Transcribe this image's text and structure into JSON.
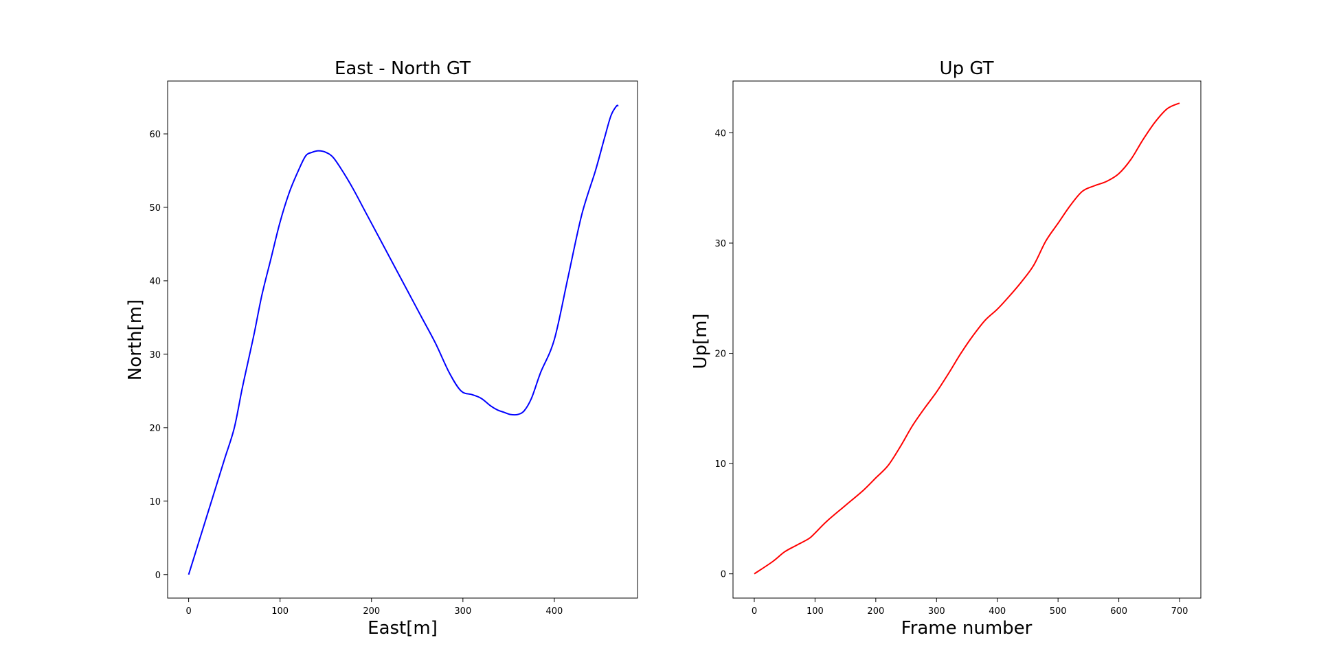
{
  "chart_data": [
    {
      "type": "line",
      "title": "East - North GT",
      "xlabel": "East[m]",
      "ylabel": "North[m]",
      "xlim": [
        -23,
        491
      ],
      "ylim": [
        -3.2,
        67.2
      ],
      "xticks": [
        0,
        100,
        200,
        300,
        400
      ],
      "yticks": [
        0,
        10,
        20,
        30,
        40,
        50,
        60
      ],
      "grid": false,
      "series": [
        {
          "color": "#0000ff",
          "x": [
            0,
            10,
            20,
            30,
            40,
            50,
            58,
            65,
            72,
            80,
            90,
            100,
            110,
            120,
            128,
            135,
            142,
            150,
            158,
            168,
            180,
            195,
            210,
            225,
            240,
            255,
            270,
            285,
            298,
            310,
            320,
            330,
            338,
            345,
            352,
            360,
            367,
            375,
            385,
            400,
            415,
            430,
            445,
            455,
            462,
            468,
            470
          ],
          "y": [
            0,
            4,
            8,
            12,
            16,
            20,
            25,
            29,
            33,
            38,
            43,
            48,
            52,
            55,
            57,
            57.5,
            57.7,
            57.5,
            56.8,
            55,
            52.5,
            49,
            45.5,
            42,
            38.5,
            35,
            31.5,
            27.5,
            25,
            24.5,
            24,
            23,
            22.4,
            22.1,
            21.8,
            21.8,
            22.3,
            24,
            27.5,
            32,
            40.5,
            49,
            55,
            59.5,
            62.5,
            63.8,
            63.8
          ]
        }
      ]
    },
    {
      "type": "line",
      "title": "Up GT",
      "xlabel": "Frame number",
      "ylabel": "Up[m]",
      "xlim": [
        -35,
        735
      ],
      "ylim": [
        -2.2,
        44.7
      ],
      "xticks": [
        0,
        100,
        200,
        300,
        400,
        500,
        600,
        700
      ],
      "yticks": [
        0,
        10,
        20,
        30,
        40
      ],
      "grid": false,
      "series": [
        {
          "color": "#ff0000",
          "x": [
            0,
            30,
            50,
            70,
            90,
            100,
            120,
            150,
            180,
            200,
            220,
            240,
            260,
            280,
            300,
            320,
            340,
            360,
            380,
            400,
            420,
            440,
            460,
            480,
            500,
            520,
            540,
            560,
            580,
            600,
            620,
            640,
            660,
            680,
            700
          ],
          "y": [
            0,
            1.1,
            2.0,
            2.6,
            3.2,
            3.7,
            4.8,
            6.2,
            7.6,
            8.7,
            9.8,
            11.5,
            13.4,
            15.0,
            16.5,
            18.2,
            20.0,
            21.6,
            23.0,
            24.0,
            25.2,
            26.5,
            28.0,
            30.2,
            31.8,
            33.4,
            34.7,
            35.2,
            35.6,
            36.3,
            37.6,
            39.4,
            41.0,
            42.2,
            42.7
          ]
        }
      ]
    }
  ]
}
